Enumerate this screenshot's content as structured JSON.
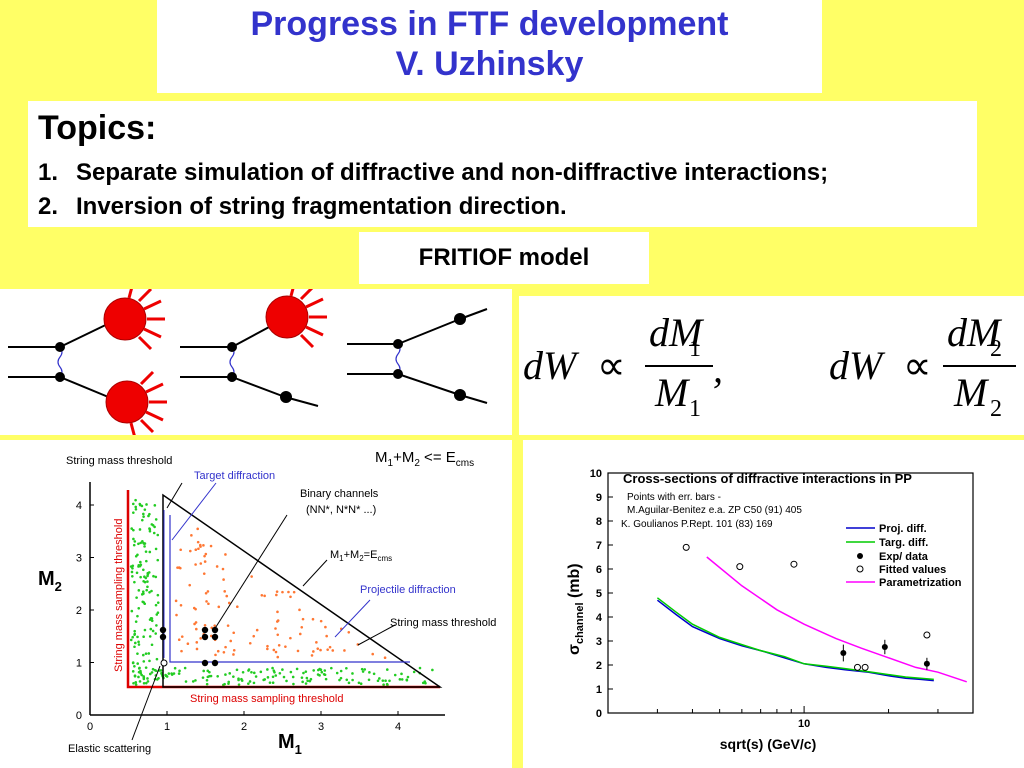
{
  "header": {
    "title": "Progress in FTF development",
    "author": "V. Uzhinsky"
  },
  "topics": {
    "heading": "Topics:",
    "items": [
      {
        "num": "1.",
        "text": "Separate simulation of diffractive and non-diffractive interactions;"
      },
      {
        "num": "2.",
        "text": "Inversion of string fragmentation direction."
      }
    ]
  },
  "model_label": "FRITIOF model",
  "formulas": {
    "f1": {
      "lhs": "dW",
      "rel": "∝",
      "num": "dM",
      "num_sub": "1",
      "den": "M",
      "den_sub": "1",
      "trail": ","
    },
    "f2": {
      "lhs": "dW",
      "rel": "∝",
      "num": "dM",
      "num_sub": "2",
      "den": "M",
      "den_sub": "2"
    }
  },
  "triangle": {
    "labels": {
      "string_mass_threshold_top": "String mass threshold",
      "target_diffraction": "Target diffraction",
      "binary_channels": "Binary channels",
      "binary_sub": "(NN*, N*N* ...)",
      "condition_top": "M1+M2 <= Ecms",
      "condition_line": "M1+M2=Ecms",
      "projectile_diffraction": "Projectile diffraction",
      "string_mass_threshold_right": "String mass threshold",
      "sampling_left": "String mass sampling threshold",
      "sampling_bottom": "String mass sampling threshold",
      "elastic": "Elastic scattering",
      "x_axis": "M",
      "x_sub": "1",
      "y_axis": "M",
      "y_sub": "2"
    },
    "x_ticks": [
      "0",
      "1",
      "2",
      "3",
      "4"
    ],
    "y_ticks": [
      "0",
      "1",
      "2",
      "3",
      "4"
    ]
  },
  "chart_data": {
    "type": "line",
    "title": "Cross-sections of diffractive interactions in PP",
    "notes": [
      "Points with err. bars -",
      "M.Aguilar-Benitez e.a. ZP C50 (91) 405",
      "K. Goulianos P.Rept. 101 (83) 169"
    ],
    "xlabel": "sqrt(s) (GeV/c)",
    "ylabel": "σchannel (mb)",
    "xscale": "log",
    "xlim": [
      2,
      40
    ],
    "ylim": [
      0,
      10
    ],
    "x_tick_labels": [
      "10"
    ],
    "y_ticks": [
      0,
      1,
      2,
      3,
      4,
      5,
      6,
      7,
      8,
      9,
      10
    ],
    "legend": [
      "Proj. diff.",
      "Targ. diff.",
      "Exp/ data",
      "Fitted values",
      "Parametrization"
    ],
    "colors": {
      "proj": "#0000cc",
      "targ": "#00cc00",
      "param": "#ff00ff"
    },
    "series": [
      {
        "name": "Proj. diff.",
        "x": [
          3.0,
          3.5,
          4.0,
          5.0,
          6.0,
          7.0,
          8.5,
          10,
          12,
          14,
          17,
          20,
          23,
          26,
          29
        ],
        "y": [
          4.7,
          4.1,
          3.6,
          3.1,
          2.8,
          2.6,
          2.3,
          2.05,
          1.9,
          1.8,
          1.7,
          1.55,
          1.45,
          1.4,
          1.35
        ]
      },
      {
        "name": "Targ. diff.",
        "x": [
          3.0,
          3.5,
          4.0,
          5.0,
          6.0,
          7.0,
          8.5,
          10,
          12,
          14,
          17,
          20,
          23,
          26,
          29
        ],
        "y": [
          4.8,
          4.2,
          3.7,
          3.15,
          2.85,
          2.6,
          2.35,
          2.05,
          1.95,
          1.85,
          1.72,
          1.6,
          1.5,
          1.45,
          1.4
        ]
      },
      {
        "name": "Exp/ data",
        "x": [
          13.8,
          19.4,
          27.4
        ],
        "y": [
          2.5,
          2.75,
          2.05
        ],
        "err": [
          0.35,
          0.3,
          0.25
        ]
      },
      {
        "name": "Fitted values",
        "x": [
          3.8,
          5.9,
          9.2,
          15.5,
          16.5,
          27.4
        ],
        "y": [
          6.9,
          6.1,
          6.2,
          1.9,
          1.9,
          3.25
        ]
      },
      {
        "name": "Parametrization",
        "x": [
          4.5,
          6,
          8,
          10,
          13,
          16,
          20,
          25,
          30,
          38
        ],
        "y": [
          6.5,
          5.3,
          4.3,
          3.7,
          3.1,
          2.7,
          2.3,
          1.9,
          1.7,
          1.3
        ]
      }
    ]
  }
}
